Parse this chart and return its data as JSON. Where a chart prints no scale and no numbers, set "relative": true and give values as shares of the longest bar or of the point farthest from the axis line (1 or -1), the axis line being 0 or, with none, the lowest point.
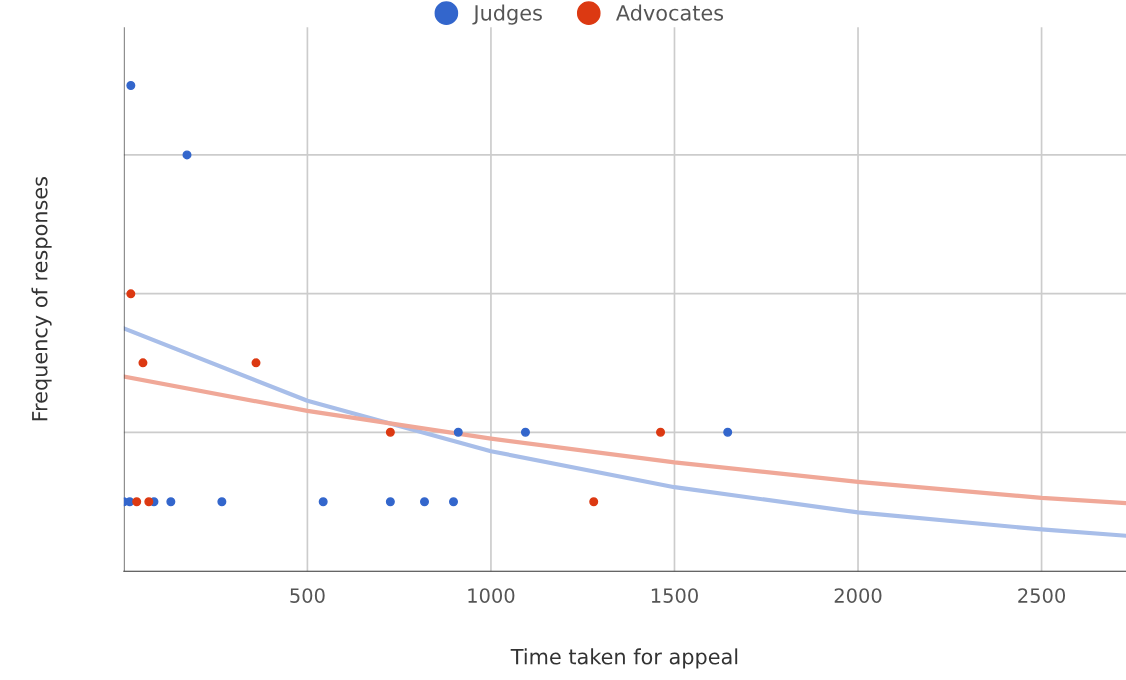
{
  "chart_data": {
    "type": "scatter",
    "xlabel": "Time taken for appeal",
    "ylabel": "Frequency of responses",
    "relative": true,
    "xlim": [
      0,
      2730
    ],
    "xticks": [
      500,
      1000,
      1500,
      2000,
      2500
    ],
    "grid": true,
    "legend": "top",
    "marker": "circle",
    "series": [
      {
        "name": "Judges",
        "color": "#3366cc",
        "x": [
          19,
          172,
          0,
          16,
          82,
          128,
          267,
          543,
          726,
          819,
          898,
          911,
          1094,
          1645
        ],
        "values": [
          1,
          0.857,
          0.143,
          0.143,
          0.143,
          0.143,
          0.143,
          0.143,
          0.143,
          0.143,
          0.143,
          0.286,
          0.286,
          0.286
        ]
      },
      {
        "name": "Advocates",
        "color": "#dc3912",
        "x": [
          19,
          52,
          360,
          726,
          1462,
          35,
          68,
          1280
        ],
        "values": [
          0.571,
          0.429,
          0.429,
          0.286,
          0.286,
          0.143,
          0.143,
          0.143
        ]
      },
      {
        "type": "line",
        "marker": "none",
        "color": "#a8bee9",
        "x": [
          0,
          500,
          1000,
          1500,
          2000,
          2500,
          2730
        ],
        "values": [
          0.5,
          0.351,
          0.247,
          0.173,
          0.121,
          0.086,
          0.073
        ]
      },
      {
        "type": "line",
        "marker": "none",
        "color": "#f0a898",
        "x": [
          0,
          500,
          1000,
          1500,
          2000,
          2500,
          2730
        ],
        "values": [
          0.401,
          0.33,
          0.273,
          0.224,
          0.184,
          0.151,
          0.14
        ]
      }
    ]
  }
}
